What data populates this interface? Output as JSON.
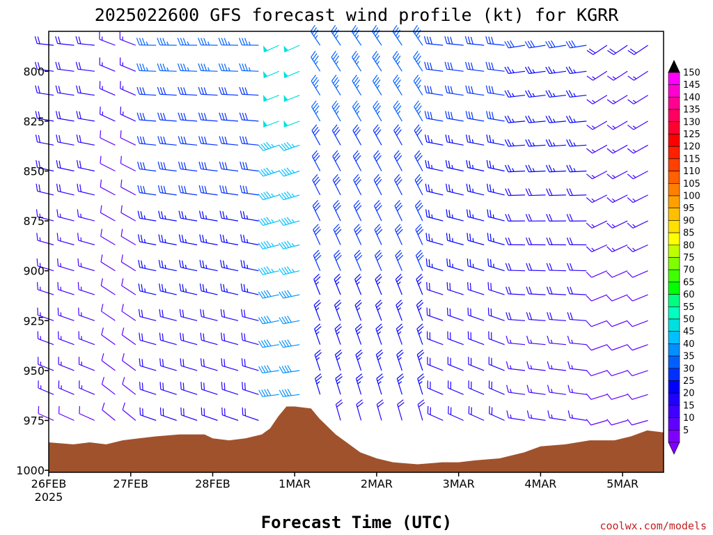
{
  "page": {
    "title": "2025022600 GFS forecast wind profile (kt) for KGRR",
    "credit": "coolwx.com/models"
  },
  "chart_data": {
    "type": "wind-barb profile",
    "title": "2025022600 GFS forecast wind profile (kt) for KGRR",
    "xlabel": "Forecast Time (UTC)",
    "ylabel": "",
    "y_axis": {
      "ticks": [
        800,
        825,
        850,
        875,
        900,
        925,
        950,
        975,
        1000
      ],
      "range": [
        1001,
        780
      ]
    },
    "x_axis": {
      "ticks": [
        "26FEB",
        "27FEB",
        "28FEB",
        "1MAR",
        "2MAR",
        "3MAR",
        "4MAR",
        "5MAR"
      ],
      "first_tick_sublabel": "2025",
      "range_days": [
        0,
        7.5
      ]
    },
    "levels_hpa": [
      787,
      800,
      812,
      825,
      837,
      850,
      862,
      875,
      887,
      900,
      912,
      925,
      937,
      950,
      962,
      975
    ],
    "terrain": {
      "fill_color": "#a0522d",
      "samples": [
        {
          "day": 0.0,
          "hpa": 986
        },
        {
          "day": 0.3,
          "hpa": 987
        },
        {
          "day": 0.5,
          "hpa": 986
        },
        {
          "day": 0.7,
          "hpa": 987
        },
        {
          "day": 0.9,
          "hpa": 985
        },
        {
          "day": 1.1,
          "hpa": 984
        },
        {
          "day": 1.3,
          "hpa": 983
        },
        {
          "day": 1.6,
          "hpa": 982
        },
        {
          "day": 1.9,
          "hpa": 982
        },
        {
          "day": 2.0,
          "hpa": 984
        },
        {
          "day": 2.2,
          "hpa": 985
        },
        {
          "day": 2.4,
          "hpa": 984
        },
        {
          "day": 2.6,
          "hpa": 982
        },
        {
          "day": 2.7,
          "hpa": 979
        },
        {
          "day": 2.8,
          "hpa": 973
        },
        {
          "day": 2.9,
          "hpa": 968
        },
        {
          "day": 3.0,
          "hpa": 968
        },
        {
          "day": 3.2,
          "hpa": 969
        },
        {
          "day": 3.3,
          "hpa": 974
        },
        {
          "day": 3.5,
          "hpa": 982
        },
        {
          "day": 3.8,
          "hpa": 991
        },
        {
          "day": 4.0,
          "hpa": 994
        },
        {
          "day": 4.2,
          "hpa": 996
        },
        {
          "day": 4.5,
          "hpa": 997
        },
        {
          "day": 4.8,
          "hpa": 996
        },
        {
          "day": 5.0,
          "hpa": 996
        },
        {
          "day": 5.2,
          "hpa": 995
        },
        {
          "day": 5.5,
          "hpa": 994
        },
        {
          "day": 5.8,
          "hpa": 991
        },
        {
          "day": 6.0,
          "hpa": 988
        },
        {
          "day": 6.3,
          "hpa": 987
        },
        {
          "day": 6.6,
          "hpa": 985
        },
        {
          "day": 6.9,
          "hpa": 985
        },
        {
          "day": 7.1,
          "hpa": 983
        },
        {
          "day": 7.3,
          "hpa": 980
        },
        {
          "day": 7.5,
          "hpa": 981
        }
      ]
    },
    "wind_regimes": [
      {
        "from_day": 0.0,
        "to_day": 0.6,
        "dir_deg": 285,
        "speed_kt_upper": 22,
        "speed_kt_lower": 12
      },
      {
        "from_day": 0.6,
        "to_day": 1.2,
        "dir_deg": 300,
        "speed_kt_upper": 14,
        "speed_kt_lower": 8
      },
      {
        "from_day": 1.2,
        "to_day": 2.6,
        "dir_deg": 280,
        "speed_kt_upper": 34,
        "speed_kt_lower": 18
      },
      {
        "from_day": 2.6,
        "to_day": 3.3,
        "dir_deg": 255,
        "speed_kt_upper": 50,
        "speed_kt_lower": 38
      },
      {
        "from_day": 3.3,
        "to_day": 4.6,
        "dir_deg": 335,
        "speed_kt_upper": 36,
        "speed_kt_lower": 22
      },
      {
        "from_day": 4.6,
        "to_day": 5.6,
        "dir_deg": 285,
        "speed_kt_upper": 30,
        "speed_kt_lower": 18
      },
      {
        "from_day": 5.6,
        "to_day": 6.6,
        "dir_deg": 270,
        "speed_kt_upper": 28,
        "speed_kt_lower": 14
      },
      {
        "from_day": 6.6,
        "to_day": 7.5,
        "dir_deg": 245,
        "speed_kt_upper": 18,
        "speed_kt_lower": 8
      }
    ],
    "colorbar": {
      "label_values": [
        150,
        145,
        140,
        135,
        130,
        125,
        120,
        115,
        110,
        105,
        100,
        95,
        90,
        85,
        80,
        75,
        70,
        65,
        60,
        55,
        50,
        45,
        40,
        35,
        30,
        25,
        20,
        15,
        10,
        5
      ],
      "colors": [
        "#ff00ff",
        "#ff00d0",
        "#ff0090",
        "#ff0060",
        "#ff0030",
        "#ff0000",
        "#ff2000",
        "#ff4000",
        "#ff6000",
        "#ff8000",
        "#ffa000",
        "#ffc000",
        "#ffe000",
        "#ffff00",
        "#c0ff00",
        "#80ff00",
        "#40ff00",
        "#00ff00",
        "#00ff80",
        "#00ffc0",
        "#00e0e0",
        "#00c0ff",
        "#0090ff",
        "#0060ff",
        "#0030ff",
        "#0000ff",
        "#2000ff",
        "#4000ff",
        "#6000ff",
        "#8000ff"
      ]
    }
  }
}
